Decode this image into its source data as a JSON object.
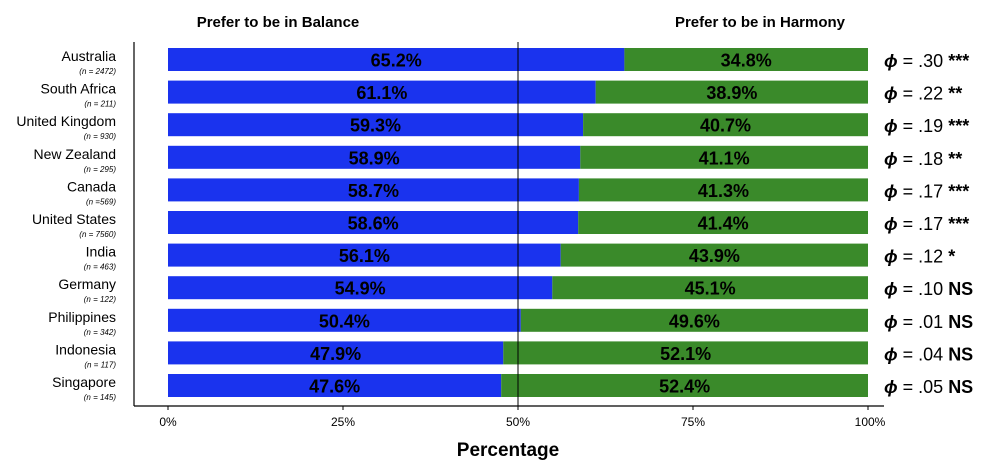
{
  "chart_data": {
    "type": "bar",
    "orientation": "horizontal",
    "stacked": true,
    "legend_headers": [
      "Prefer to be in Balance",
      "Prefer to be in Harmony"
    ],
    "xlabel": "Percentage",
    "xlim": [
      0,
      100
    ],
    "x_ticks": [
      "0%",
      "25%",
      "50%",
      "75%",
      "100%"
    ],
    "reference_line": 50,
    "colors": {
      "balance": "#1a33ee",
      "harmony": "#3a8a2a"
    },
    "categories": [
      {
        "country": "Australia",
        "n": "(n = 2472)",
        "phi": ".30",
        "sig": "***"
      },
      {
        "country": "South Africa",
        "n": "(n = 211)",
        "phi": ".22",
        "sig": "**"
      },
      {
        "country": "United Kingdom",
        "n": "(n = 930)",
        "phi": ".19",
        "sig": "***"
      },
      {
        "country": "New Zealand",
        "n": "(n = 295)",
        "phi": ".18",
        "sig": "**"
      },
      {
        "country": "Canada",
        "n": "(n =569)",
        "phi": ".17",
        "sig": "***"
      },
      {
        "country": "United States",
        "n": "(n = 7560)",
        "phi": ".17",
        "sig": "***"
      },
      {
        "country": "India",
        "n": "(n = 463)",
        "phi": ".12",
        "sig": "*"
      },
      {
        "country": "Germany",
        "n": "(n = 122)",
        "phi": ".10",
        "sig": "NS"
      },
      {
        "country": "Philippines",
        "n": "(n = 342)",
        "phi": ".01",
        "sig": "NS"
      },
      {
        "country": "Indonesia",
        "n": "(n = 117)",
        "phi": ".04",
        "sig": "NS"
      },
      {
        "country": "Singapore",
        "n": "(n = 145)",
        "phi": ".05",
        "sig": "NS"
      }
    ],
    "series": [
      {
        "name": "Prefer to be in Balance",
        "values": [
          65.2,
          61.1,
          59.3,
          58.9,
          58.7,
          58.6,
          56.1,
          54.9,
          50.4,
          47.9,
          47.6
        ],
        "labels": [
          "65.2%",
          "61.1%",
          "59.3%",
          "58.9%",
          "58.7%",
          "58.6%",
          "56.1%",
          "54.9%",
          "50.4%",
          "47.9%",
          "47.6%"
        ]
      },
      {
        "name": "Prefer to be in Harmony",
        "values": [
          34.8,
          38.9,
          40.7,
          41.1,
          41.3,
          41.4,
          43.9,
          45.1,
          49.6,
          52.1,
          52.4
        ],
        "labels": [
          "34.8%",
          "38.9%",
          "40.7%",
          "41.1%",
          "41.3%",
          "41.4%",
          "43.9%",
          "45.1%",
          "49.6%",
          "52.1%",
          "52.4%"
        ]
      }
    ],
    "phi_symbol": "ϕ",
    "phi_equals": " = "
  }
}
